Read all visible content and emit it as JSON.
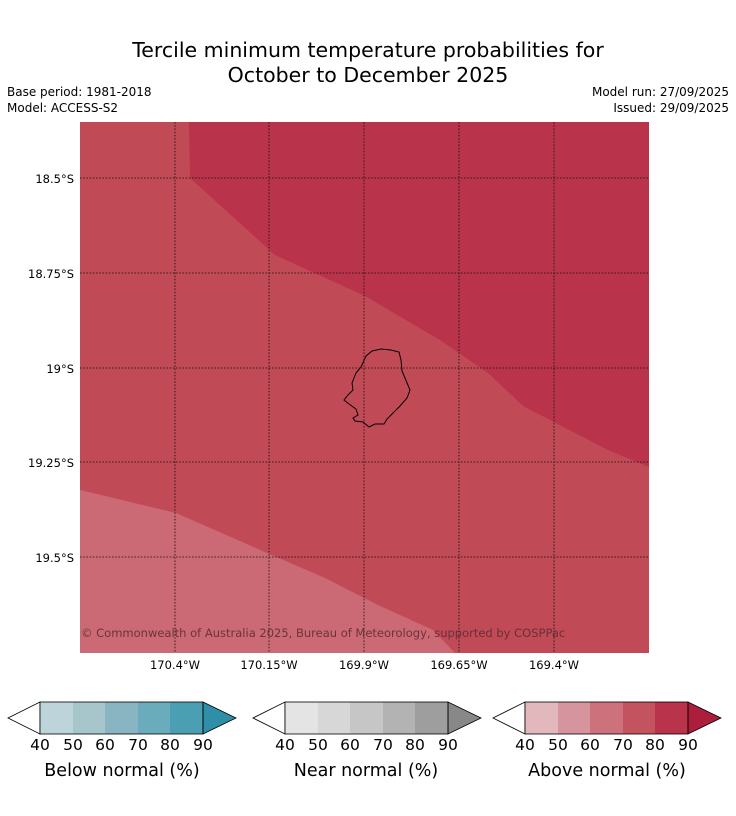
{
  "title": {
    "line1": "Tercile minimum temperature probabilities for",
    "line2": "October to December 2025"
  },
  "meta": {
    "base_period": "Base period: 1981-2018",
    "model": "Model: ACCESS-S2",
    "model_run": "Model run: 27/09/2025",
    "issued": "Issued: 29/09/2025"
  },
  "map": {
    "lat_labels": [
      "18.5°S",
      "18.75°S",
      "19°S",
      "19.25°S",
      "19.5°S"
    ],
    "lon_labels": [
      "170.4°W",
      "170.15°W",
      "169.9°W",
      "169.65°W",
      "169.4°W"
    ],
    "copyright": "© Commonwealth of Australia 2025, Bureau of Meteorology, supported by COSPPac",
    "zones": [
      {
        "category": "Above normal",
        "probability_band": "60-70",
        "color": "#cb6a74"
      },
      {
        "category": "Above normal",
        "probability_band": "70-80",
        "color": "#c14a57"
      },
      {
        "category": "Above normal",
        "probability_band": "80-90",
        "color": "#b9334a"
      }
    ],
    "land_outline_color": "#000000"
  },
  "colorbars": [
    {
      "label": "Below normal (%)",
      "ticks": [
        "40",
        "50",
        "60",
        "70",
        "80",
        "90"
      ],
      "colors": [
        "#bdd4da",
        "#a6c6cc",
        "#88b5c1",
        "#6aacbc",
        "#4b9fb2",
        "#2f8fa8"
      ]
    },
    {
      "label": "Near normal (%)",
      "ticks": [
        "40",
        "50",
        "60",
        "70",
        "80",
        "90"
      ],
      "colors": [
        "#e4e4e4",
        "#d7d7d7",
        "#c6c6c6",
        "#b3b3b3",
        "#9e9e9e",
        "#888888"
      ]
    },
    {
      "label": "Above normal (%)",
      "ticks": [
        "40",
        "50",
        "60",
        "70",
        "80",
        "90"
      ],
      "colors": [
        "#e2b8bd",
        "#d6959e",
        "#cd727d",
        "#c3535f",
        "#b9334a",
        "#ad1e3c"
      ]
    }
  ]
}
